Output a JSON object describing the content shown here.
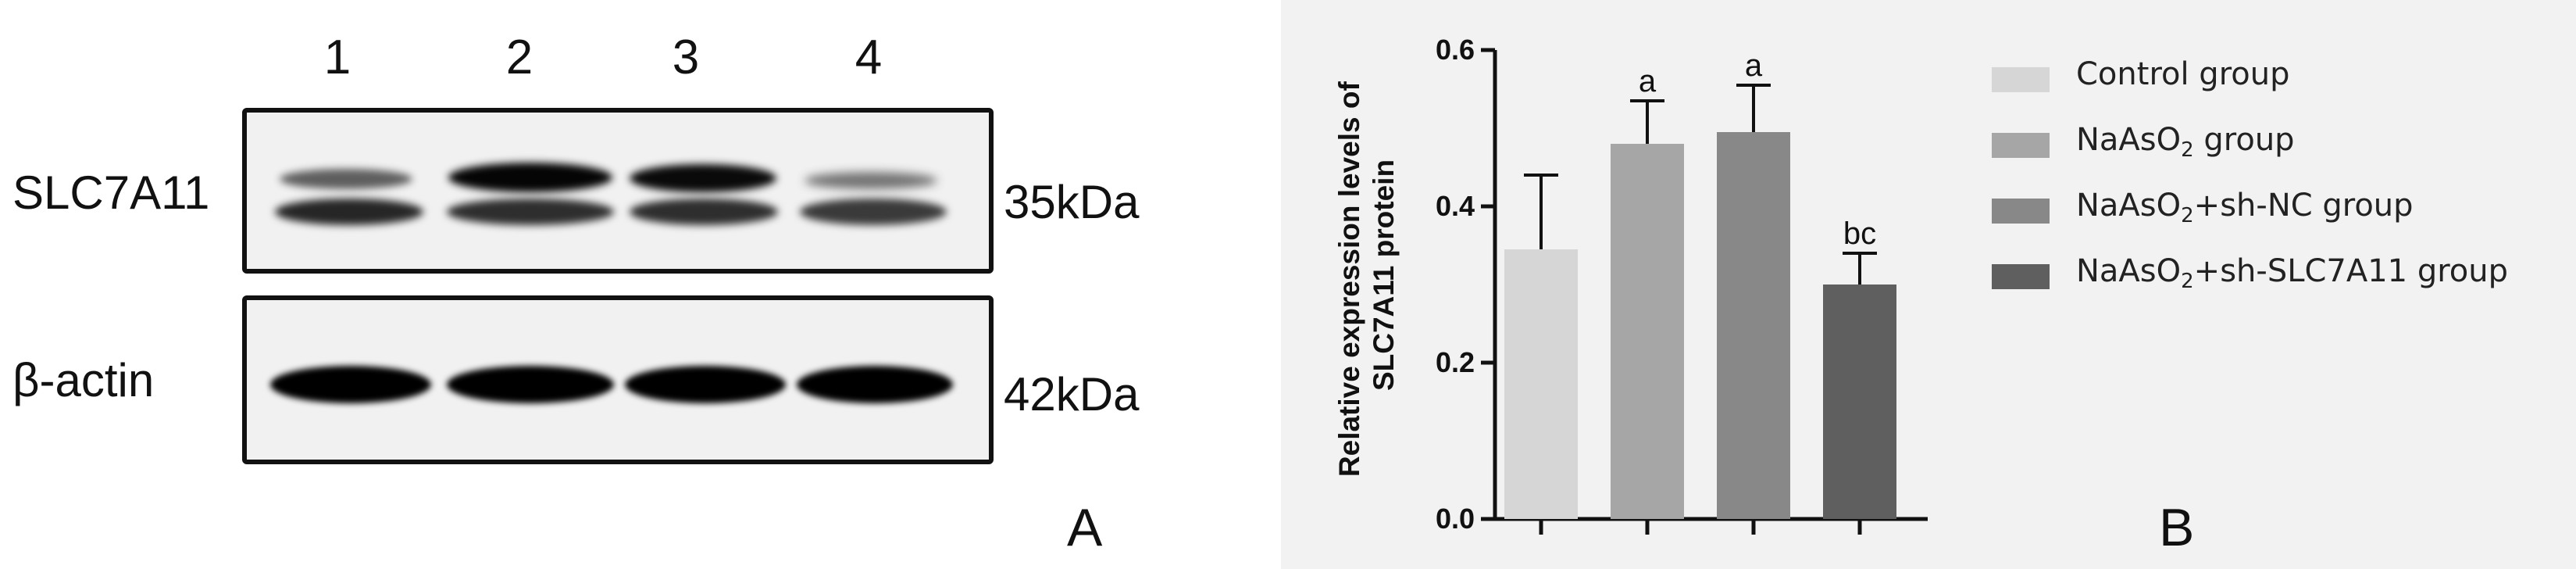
{
  "panel_a": {
    "lane_labels": [
      "1",
      "2",
      "3",
      "4"
    ],
    "rows": [
      {
        "protein": "SLC7A11",
        "size": "35kDa"
      },
      {
        "protein": "β-actin",
        "size": "42kDa"
      }
    ],
    "panel_label": "A"
  },
  "panel_b": {
    "panel_label": "B"
  },
  "chart_data": {
    "type": "bar",
    "categories": [
      "Control group",
      "NaAsO2 group",
      "NaAsO2+sh-NC group",
      "NaAsO2+sh-SLC7A11 group"
    ],
    "values": [
      0.345,
      0.48,
      0.495,
      0.3
    ],
    "error": [
      0.095,
      0.055,
      0.06,
      0.04
    ],
    "annotations": [
      "",
      "a",
      "a",
      "bc"
    ],
    "colors": [
      "#d6d6d6",
      "#a6a6a6",
      "#888888",
      "#5f5f5f"
    ],
    "ylabel_lines": [
      "Relative expression levels of",
      "SLC7A11 protein"
    ],
    "yticks": [
      "0.0",
      "0.2",
      "0.4",
      "0.6"
    ],
    "ylim": [
      0,
      0.6
    ],
    "legend": {
      "position": "right",
      "entries": [
        {
          "pre": "Control group",
          "sub": "",
          "post": ""
        },
        {
          "pre": "NaAsO",
          "sub": "2",
          "post": " group"
        },
        {
          "pre": "NaAsO",
          "sub": "2",
          "post": "+sh-NC group"
        },
        {
          "pre": "NaAsO",
          "sub": "2",
          "post": "+sh-SLC7A11 group"
        }
      ]
    },
    "grid": false
  }
}
